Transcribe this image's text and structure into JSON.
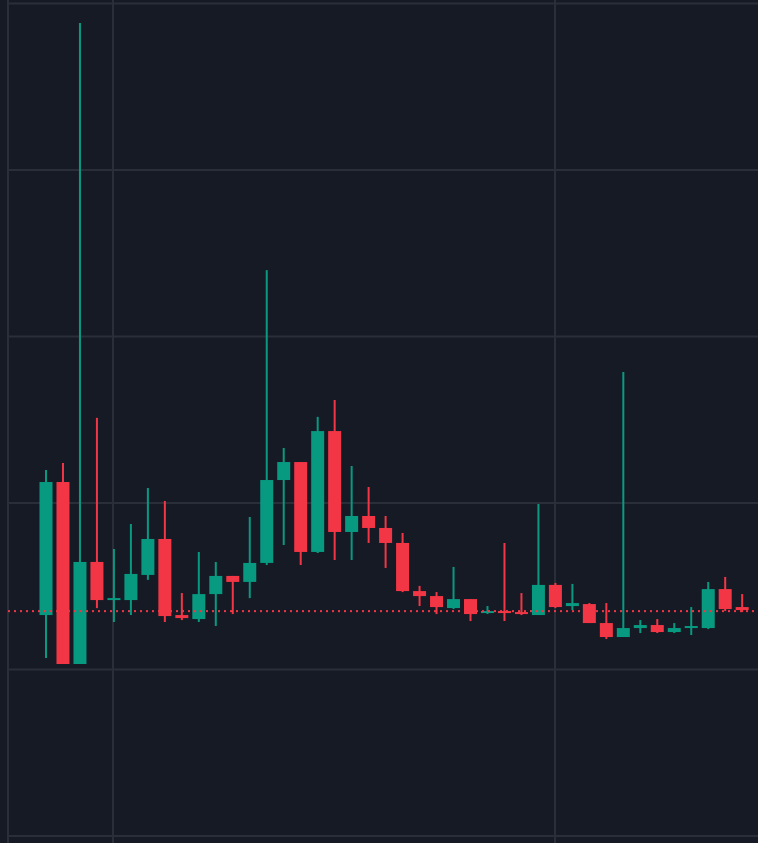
{
  "chart_data": {
    "type": "candlestick",
    "open": [
      13.27,
      21.26,
      10.33,
      16.46,
      14.17,
      14.17,
      15.68,
      17.84,
      13.27,
      13.03,
      14.53,
      15.62,
      15.26,
      16.4,
      21.38,
      22.46,
      17.06,
      24.32,
      18.26,
      19.22,
      18.5,
      17.6,
      14.71,
      14.41,
      13.69,
      14.23,
      13.39,
      13.51,
      13.45,
      13.27,
      15.08,
      13.81,
      13.93,
      12.79,
      11.95,
      12.49,
      12.67,
      12.25,
      12.49,
      12.49,
      14.83,
      13.75
    ],
    "high": [
      21.98,
      22.4,
      48.83,
      25.11,
      17.24,
      18.74,
      20.9,
      20.12,
      14.59,
      17.06,
      16.46,
      15.62,
      19.16,
      33.99,
      23.3,
      22.46,
      25.17,
      26.19,
      22.22,
      20.96,
      19.22,
      18.2,
      15.02,
      14.65,
      16.16,
      14.23,
      13.81,
      17.6,
      14.59,
      19.94,
      15.2,
      15.14,
      13.99,
      13.99,
      27.87,
      12.97,
      13.03,
      12.79,
      13.75,
      15.26,
      15.56,
      14.53
    ],
    "low": [
      10.69,
      10.33,
      10.33,
      13.69,
      12.85,
      13.27,
      15.38,
      12.85,
      12.97,
      12.85,
      12.61,
      13.33,
      14.29,
      16.28,
      17.48,
      16.28,
      17.0,
      16.58,
      16.58,
      17.6,
      16.1,
      14.65,
      13.81,
      13.33,
      13.63,
      12.91,
      13.33,
      12.91,
      13.27,
      13.27,
      13.69,
      13.57,
      12.79,
      11.83,
      11.95,
      12.19,
      12.19,
      12.19,
      12.07,
      12.43,
      13.51,
      13.45
    ],
    "close": [
      21.26,
      10.33,
      16.46,
      14.17,
      14.29,
      15.74,
      17.84,
      13.21,
      13.09,
      14.53,
      15.62,
      15.26,
      16.4,
      21.38,
      22.46,
      17.06,
      24.32,
      18.26,
      19.22,
      18.5,
      17.6,
      14.71,
      14.41,
      13.75,
      14.23,
      13.33,
      13.51,
      13.39,
      13.33,
      15.08,
      13.75,
      13.99,
      12.79,
      11.95,
      12.49,
      12.67,
      12.25,
      12.49,
      12.61,
      14.83,
      13.63,
      13.57
    ],
    "up_color": "#089981",
    "down_color": "#f23645",
    "price_line": 13.51,
    "price_line_color": "#f23645",
    "ylim": [
      -0.42,
      50.21
    ],
    "yticks": [
      0,
      10,
      20,
      30,
      40,
      50
    ],
    "grid": true
  }
}
